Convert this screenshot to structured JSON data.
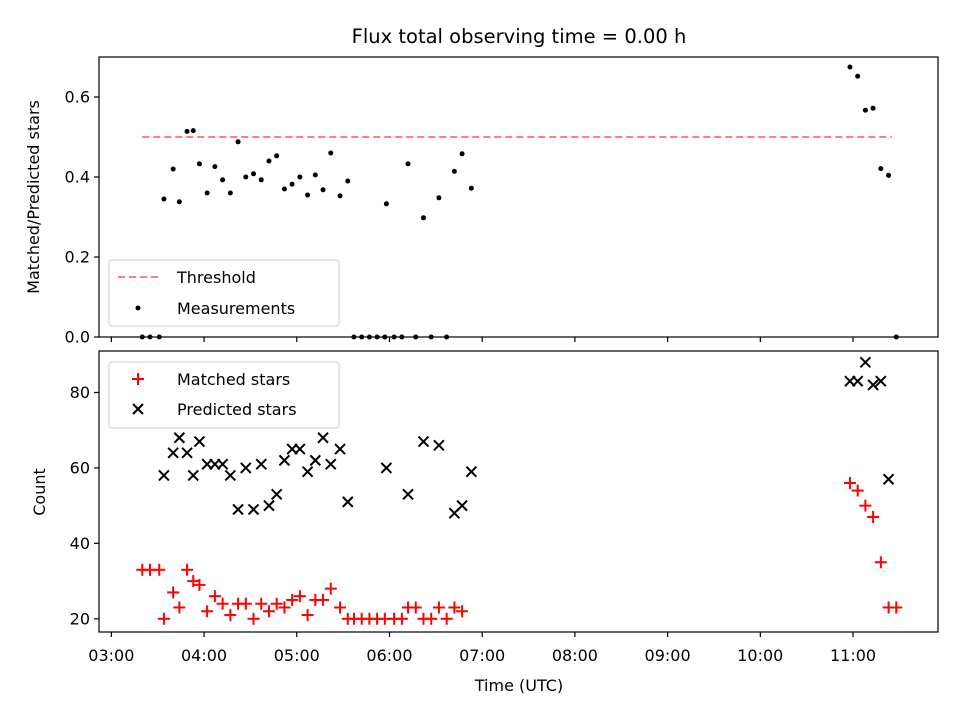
{
  "chart_data": [
    {
      "type": "scatter",
      "title": "Flux total observing time = 0.00 h",
      "xlabel": "",
      "ylabel": "Matched/Predicted stars",
      "xlim": [
        "02:52",
        "11:55"
      ],
      "ylim": [
        0,
        0.7
      ],
      "yticks": [
        "0.0",
        "0.2",
        "0.4",
        "0.6"
      ],
      "legend_position": "lower-left",
      "series": [
        {
          "name": "Threshold",
          "kind": "line",
          "color": "#ff7f7f",
          "points": [
            [
              "03:20",
              0.5
            ],
            [
              "11:25",
              0.5
            ]
          ]
        },
        {
          "name": "Measurements",
          "kind": "scatter",
          "color": "#000000",
          "points": [
            [
              "03:20",
              0
            ],
            [
              "03:25",
              0
            ],
            [
              "03:31",
              0
            ],
            [
              "03:34",
              0.345
            ],
            [
              "03:40",
              0.42
            ],
            [
              "03:44",
              0.338
            ],
            [
              "03:49",
              0.514
            ],
            [
              "03:53",
              0.516
            ],
            [
              "03:57",
              0.433
            ],
            [
              "04:02",
              0.36
            ],
            [
              "04:07",
              0.426
            ],
            [
              "04:12",
              0.393
            ],
            [
              "04:17",
              0.36
            ],
            [
              "04:22",
              0.488
            ],
            [
              "04:27",
              0.4
            ],
            [
              "04:32",
              0.408
            ],
            [
              "04:37",
              0.393
            ],
            [
              "04:42",
              0.44
            ],
            [
              "04:47",
              0.453
            ],
            [
              "04:52",
              0.37
            ],
            [
              "04:57",
              0.382
            ],
            [
              "05:02",
              0.4
            ],
            [
              "05:07",
              0.355
            ],
            [
              "05:12",
              0.405
            ],
            [
              "05:17",
              0.368
            ],
            [
              "05:22",
              0.46
            ],
            [
              "05:28",
              0.353
            ],
            [
              "05:33",
              0.39
            ],
            [
              "05:37",
              0
            ],
            [
              "05:42",
              0
            ],
            [
              "05:47",
              0
            ],
            [
              "05:52",
              0
            ],
            [
              "05:57",
              0
            ],
            [
              "05:58",
              0.333
            ],
            [
              "06:03",
              0
            ],
            [
              "06:08",
              0
            ],
            [
              "06:12",
              0.433
            ],
            [
              "06:17",
              0
            ],
            [
              "06:22",
              0.298
            ],
            [
              "06:27",
              0
            ],
            [
              "06:32",
              0.348
            ],
            [
              "06:37",
              0
            ],
            [
              "06:42",
              0.414
            ],
            [
              "06:47",
              0.458
            ],
            [
              "06:53",
              0.372
            ],
            [
              "10:58",
              0.675
            ],
            [
              "11:03",
              0.652
            ],
            [
              "11:08",
              0.567
            ],
            [
              "11:13",
              0.572
            ],
            [
              "11:18",
              0.421
            ],
            [
              "11:23",
              0.404
            ],
            [
              "11:28",
              0
            ]
          ]
        }
      ]
    },
    {
      "type": "scatter",
      "title": "",
      "xlabel": "Time (UTC)",
      "ylabel": "Count",
      "xlim": [
        "02:52",
        "11:55"
      ],
      "ylim": [
        16.5,
        91
      ],
      "yticks": [
        "20",
        "40",
        "60",
        "80"
      ],
      "xticks": [
        "03:00",
        "04:00",
        "05:00",
        "06:00",
        "07:00",
        "08:00",
        "09:00",
        "10:00",
        "11:00"
      ],
      "legend_position": "upper-left",
      "series": [
        {
          "name": "Matched stars",
          "kind": "plus",
          "color": "#ff0000",
          "points": [
            [
              "03:20",
              33
            ],
            [
              "03:25",
              33
            ],
            [
              "03:31",
              33
            ],
            [
              "03:34",
              20
            ],
            [
              "03:40",
              27
            ],
            [
              "03:44",
              23
            ],
            [
              "03:49",
              33
            ],
            [
              "03:53",
              30
            ],
            [
              "03:57",
              29
            ],
            [
              "04:02",
              22
            ],
            [
              "04:07",
              26
            ],
            [
              "04:12",
              24
            ],
            [
              "04:17",
              21
            ],
            [
              "04:22",
              24
            ],
            [
              "04:27",
              24
            ],
            [
              "04:32",
              20
            ],
            [
              "04:37",
              24
            ],
            [
              "04:42",
              22
            ],
            [
              "04:47",
              24
            ],
            [
              "04:52",
              23
            ],
            [
              "04:57",
              25
            ],
            [
              "05:02",
              26
            ],
            [
              "05:07",
              21
            ],
            [
              "05:12",
              25
            ],
            [
              "05:17",
              25
            ],
            [
              "05:22",
              28
            ],
            [
              "05:28",
              23
            ],
            [
              "05:33",
              20
            ],
            [
              "05:37",
              20
            ],
            [
              "05:42",
              20
            ],
            [
              "05:47",
              20
            ],
            [
              "05:52",
              20
            ],
            [
              "05:57",
              20
            ],
            [
              "06:03",
              20
            ],
            [
              "06:08",
              20
            ],
            [
              "06:12",
              23
            ],
            [
              "06:17",
              23
            ],
            [
              "06:22",
              20
            ],
            [
              "06:27",
              20
            ],
            [
              "06:32",
              23
            ],
            [
              "06:37",
              20
            ],
            [
              "06:42",
              23
            ],
            [
              "06:47",
              22
            ],
            [
              "10:58",
              56
            ],
            [
              "11:03",
              54
            ],
            [
              "11:08",
              50
            ],
            [
              "11:13",
              47
            ],
            [
              "11:18",
              35
            ],
            [
              "11:23",
              23
            ],
            [
              "11:28",
              23
            ]
          ]
        },
        {
          "name": "Predicted stars",
          "kind": "x",
          "color": "#000000",
          "points": [
            [
              "03:34",
              58
            ],
            [
              "03:40",
              64
            ],
            [
              "03:44",
              68
            ],
            [
              "03:49",
              64
            ],
            [
              "03:53",
              58
            ],
            [
              "03:57",
              67
            ],
            [
              "04:02",
              61
            ],
            [
              "04:07",
              61
            ],
            [
              "04:12",
              61
            ],
            [
              "04:17",
              58
            ],
            [
              "04:22",
              49
            ],
            [
              "04:27",
              60
            ],
            [
              "04:32",
              49
            ],
            [
              "04:37",
              61
            ],
            [
              "04:42",
              50
            ],
            [
              "04:47",
              53
            ],
            [
              "04:52",
              62
            ],
            [
              "04:57",
              65
            ],
            [
              "05:02",
              65
            ],
            [
              "05:07",
              59
            ],
            [
              "05:12",
              62
            ],
            [
              "05:17",
              68
            ],
            [
              "05:22",
              61
            ],
            [
              "05:28",
              65
            ],
            [
              "05:33",
              51
            ],
            [
              "05:58",
              60
            ],
            [
              "06:12",
              53
            ],
            [
              "06:22",
              67
            ],
            [
              "06:32",
              66
            ],
            [
              "06:42",
              48
            ],
            [
              "06:47",
              50
            ],
            [
              "06:53",
              59
            ],
            [
              "10:58",
              83
            ],
            [
              "11:03",
              83
            ],
            [
              "11:08",
              88
            ],
            [
              "11:13",
              82
            ],
            [
              "11:18",
              83
            ],
            [
              "11:23",
              57
            ]
          ]
        }
      ]
    }
  ]
}
